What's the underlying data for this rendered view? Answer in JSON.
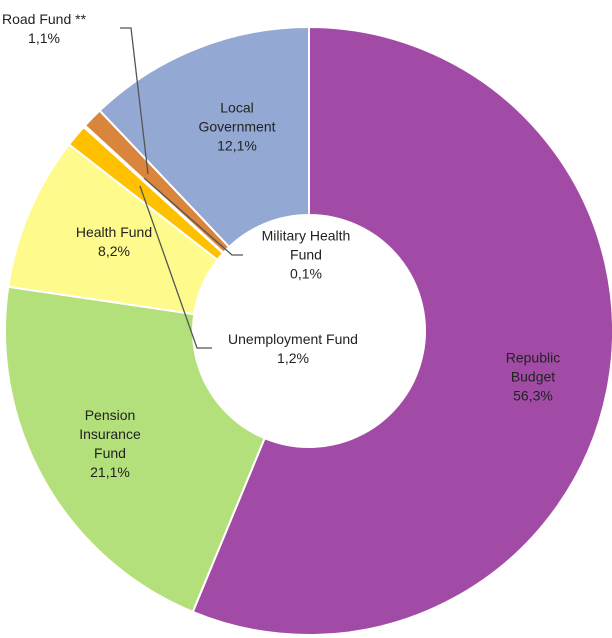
{
  "chart_data": {
    "type": "donut",
    "categories": [
      "Republic Budget",
      "Pension Insurance Fund",
      "Health Fund",
      "Unemployment Fund",
      "Military Health Fund",
      "Road Fund **",
      "Local Government"
    ],
    "values": [
      56.3,
      21.1,
      8.2,
      1.2,
      0.1,
      1.1,
      12.1
    ],
    "value_labels": [
      "56,3%",
      "21,1%",
      "8,2%",
      "1,2%",
      "0,1%",
      "1,1%",
      "12,1%"
    ],
    "colors": [
      "#a24ba6",
      "#b3e07a",
      "#fffa8c",
      "#ffc000",
      "#f2f2f2",
      "#d9853b",
      "#93a9d3"
    ]
  }
}
